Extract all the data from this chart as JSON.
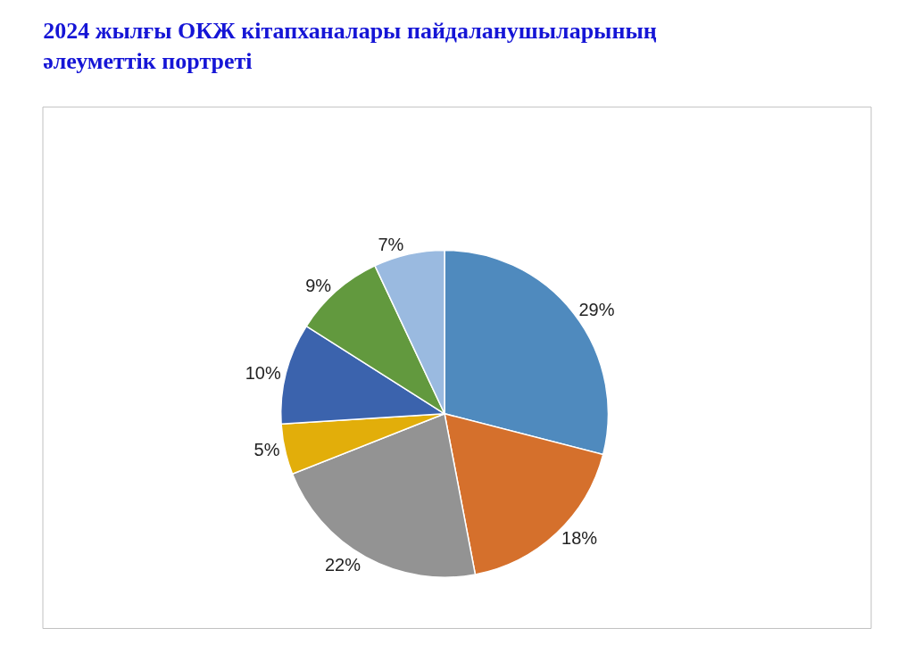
{
  "chart_data": {
    "type": "pie",
    "title": "2024 жылғы ОКЖ кітапханалары пайдаланушыларының\nәлеуметтік портреті",
    "categories": [
      null,
      null,
      null,
      null,
      null,
      null,
      null
    ],
    "values": [
      29,
      18,
      22,
      5,
      10,
      9,
      7
    ],
    "colors": [
      "#4f8abe",
      "#d5702c",
      "#939393",
      "#e2ae0a",
      "#3b63ad",
      "#62993e",
      "#9abae0"
    ],
    "value_labels": [
      "29%",
      "18%",
      "22%",
      "5%",
      "10%",
      "9%",
      "7%"
    ],
    "legend": false
  }
}
